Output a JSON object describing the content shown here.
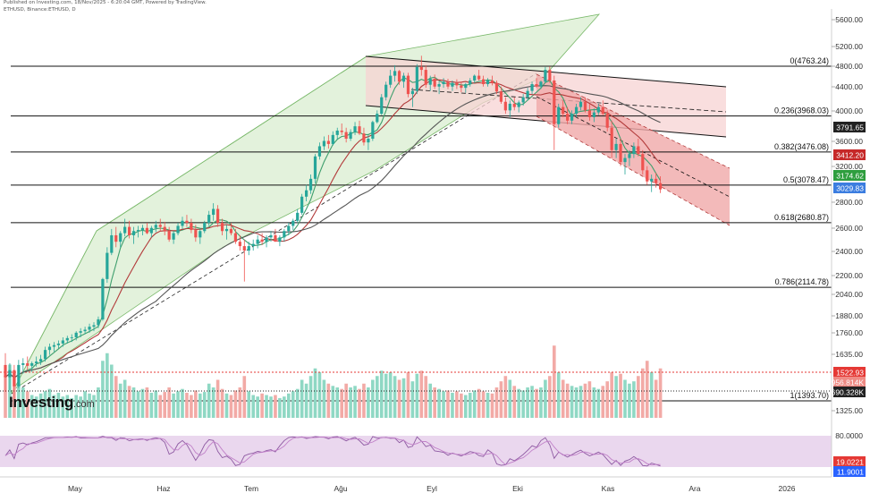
{
  "header": {
    "published": "Published on Investing.com, 18/Nov/2025 - 6:20:04 GMT, Powered by TradingView.",
    "symbol": "ETHUSD, Binance:ETHUSD, D"
  },
  "branding": {
    "name": "Investing",
    "suffix": ".com"
  },
  "colors": {
    "up": "#26a69a",
    "down": "#ef5350",
    "vol_up": "#8fd8c4",
    "vol_down": "#f2aaa6",
    "up_channel": "#e3f2dc",
    "down_channel": "#f7d3d3",
    "ma_fast": "#3f9f6d",
    "ma_mid": "#b23a3a",
    "ma_slow": "#555555",
    "stoch_bg": "#ead7ee",
    "stoch_line": "#8e5aa2"
  },
  "chart_data": {
    "type": "candlestick",
    "symbol": "ETHUSD",
    "exchange": "Binance",
    "interval": "D",
    "x_ticks": [
      "May",
      "Haz",
      "Tem",
      "Ağu",
      "Eyl",
      "Eki",
      "Kas",
      "Ara",
      "2026"
    ],
    "y_ticks": [
      "5600.00",
      "5200.00",
      "4800.00",
      "4400.00",
      "4000.00",
      "3600.00",
      "3200.00",
      "2800.00",
      "2600.00",
      "2400.00",
      "2200.00",
      "2040.00",
      "1880.00",
      "1760.00",
      "1635.00",
      "1325.00"
    ],
    "y_scale": "log",
    "fibonacci_levels": [
      {
        "label": "0(4763.24)",
        "level": 0,
        "price": 4763.24
      },
      {
        "label": "0.236(3968.03)",
        "level": 0.236,
        "price": 3968.03
      },
      {
        "label": "0.382(3476.08)",
        "level": 0.382,
        "price": 3476.08
      },
      {
        "label": "0.5(3078.47)",
        "level": 0.5,
        "price": 3078.47
      },
      {
        "label": "0.618(2680.87)",
        "level": 0.618,
        "price": 2680.87
      },
      {
        "label": "0.786(2114.78)",
        "level": 0.786,
        "price": 2114.78
      },
      {
        "label": "1(1393.70)",
        "level": 1,
        "price": 1393.7
      }
    ],
    "price_tags": [
      {
        "value": "3791.65",
        "color": "#222222"
      },
      {
        "value": "3412.20",
        "color": "#c62828"
      },
      {
        "value": "3174.62",
        "color": "#2e9e3e"
      },
      {
        "value": "3029.83",
        "color": "#3b7de0"
      }
    ],
    "volume_tags": [
      {
        "value": "1522.93",
        "color": "#e53935"
      },
      {
        "value": "956.814K",
        "color": "#ef8a84"
      },
      {
        "value": "690.328K",
        "color": "#222222"
      }
    ],
    "stochastic": {
      "y_ticks": [
        "80.0000",
        "20.0000"
      ],
      "tags": [
        {
          "value": "19.0221",
          "color": "#e53935"
        },
        {
          "value": "11.9001",
          "color": "#2962ff"
        }
      ]
    },
    "candles": [
      [
        1590,
        1660,
        1440,
        1520
      ],
      [
        1520,
        1600,
        1450,
        1560
      ],
      [
        1560,
        1590,
        1400,
        1470
      ],
      [
        1470,
        1620,
        1460,
        1590
      ],
      [
        1590,
        1630,
        1540,
        1600
      ],
      [
        1600,
        1640,
        1560,
        1585
      ],
      [
        1585,
        1610,
        1550,
        1600
      ],
      [
        1600,
        1640,
        1580,
        1610
      ],
      [
        1610,
        1650,
        1590,
        1625
      ],
      [
        1625,
        1700,
        1610,
        1680
      ],
      [
        1680,
        1720,
        1650,
        1700
      ],
      [
        1700,
        1730,
        1670,
        1710
      ],
      [
        1710,
        1740,
        1690,
        1720
      ],
      [
        1720,
        1760,
        1700,
        1740
      ],
      [
        1740,
        1770,
        1720,
        1755
      ],
      [
        1755,
        1780,
        1730,
        1760
      ],
      [
        1760,
        1800,
        1740,
        1790
      ],
      [
        1790,
        1820,
        1760,
        1800
      ],
      [
        1800,
        1830,
        1780,
        1810
      ],
      [
        1810,
        1850,
        1790,
        1830
      ],
      [
        1830,
        1860,
        1800,
        1840
      ],
      [
        1840,
        1900,
        1820,
        1880
      ],
      [
        1880,
        2190,
        1870,
        2180
      ],
      [
        2180,
        2450,
        2150,
        2400
      ],
      [
        2400,
        2620,
        2380,
        2560
      ],
      [
        2560,
        2640,
        2450,
        2500
      ],
      [
        2500,
        2600,
        2450,
        2580
      ],
      [
        2580,
        2720,
        2550,
        2640
      ],
      [
        2640,
        2700,
        2530,
        2560
      ],
      [
        2560,
        2640,
        2480,
        2600
      ],
      [
        2600,
        2650,
        2540,
        2610
      ],
      [
        2610,
        2660,
        2560,
        2630
      ],
      [
        2630,
        2680,
        2570,
        2580
      ],
      [
        2580,
        2650,
        2540,
        2630
      ],
      [
        2630,
        2700,
        2590,
        2660
      ],
      [
        2660,
        2720,
        2600,
        2640
      ],
      [
        2640,
        2690,
        2560,
        2600
      ],
      [
        2600,
        2640,
        2500,
        2520
      ],
      [
        2520,
        2600,
        2480,
        2580
      ],
      [
        2580,
        2680,
        2560,
        2650
      ],
      [
        2650,
        2740,
        2620,
        2700
      ],
      [
        2700,
        2760,
        2640,
        2680
      ],
      [
        2680,
        2720,
        2580,
        2610
      ],
      [
        2610,
        2660,
        2500,
        2540
      ],
      [
        2540,
        2620,
        2480,
        2600
      ],
      [
        2600,
        2700,
        2580,
        2680
      ],
      [
        2680,
        2800,
        2650,
        2760
      ],
      [
        2760,
        2880,
        2700,
        2820
      ],
      [
        2820,
        2860,
        2640,
        2680
      ],
      [
        2680,
        2720,
        2560,
        2600
      ],
      [
        2600,
        2660,
        2520,
        2620
      ],
      [
        2620,
        2680,
        2560,
        2580
      ],
      [
        2580,
        2620,
        2480,
        2500
      ],
      [
        2500,
        2560,
        2420,
        2460
      ],
      [
        2460,
        2520,
        2160,
        2420
      ],
      [
        2420,
        2500,
        2380,
        2460
      ],
      [
        2460,
        2520,
        2420,
        2480
      ],
      [
        2480,
        2560,
        2440,
        2520
      ],
      [
        2520,
        2580,
        2470,
        2500
      ],
      [
        2500,
        2560,
        2450,
        2540
      ],
      [
        2540,
        2600,
        2500,
        2560
      ],
      [
        2560,
        2620,
        2520,
        2500
      ],
      [
        2500,
        2560,
        2460,
        2540
      ],
      [
        2540,
        2620,
        2500,
        2600
      ],
      [
        2600,
        2680,
        2560,
        2650
      ],
      [
        2650,
        2720,
        2610,
        2700
      ],
      [
        2700,
        2820,
        2680,
        2780
      ],
      [
        2780,
        2980,
        2760,
        2950
      ],
      [
        2950,
        3080,
        2900,
        3020
      ],
      [
        3020,
        3200,
        2980,
        3150
      ],
      [
        3150,
        3450,
        3100,
        3420
      ],
      [
        3420,
        3600,
        3380,
        3550
      ],
      [
        3550,
        3680,
        3500,
        3620
      ],
      [
        3620,
        3700,
        3520,
        3580
      ],
      [
        3580,
        3750,
        3560,
        3700
      ],
      [
        3700,
        3800,
        3640,
        3760
      ],
      [
        3760,
        3860,
        3700,
        3740
      ],
      [
        3740,
        3800,
        3600,
        3650
      ],
      [
        3650,
        3780,
        3620,
        3740
      ],
      [
        3740,
        3880,
        3700,
        3820
      ],
      [
        3820,
        3900,
        3700,
        3720
      ],
      [
        3720,
        3800,
        3560,
        3600
      ],
      [
        3600,
        3700,
        3500,
        3650
      ],
      [
        3650,
        3900,
        3620,
        3880
      ],
      [
        3880,
        4050,
        3860,
        4000
      ],
      [
        4000,
        4300,
        3980,
        4250
      ],
      [
        4250,
        4500,
        4200,
        4450
      ],
      [
        4450,
        4700,
        4400,
        4600
      ],
      [
        4600,
        4780,
        4500,
        4680
      ],
      [
        4680,
        4700,
        4450,
        4500
      ],
      [
        4500,
        4650,
        4400,
        4600
      ],
      [
        4600,
        4650,
        4250,
        4300
      ],
      [
        4300,
        4400,
        4100,
        4350
      ],
      [
        4350,
        4800,
        4300,
        4750
      ],
      [
        4750,
        4950,
        4600,
        4700
      ],
      [
        4700,
        4780,
        4400,
        4450
      ],
      [
        4450,
        4600,
        4350,
        4550
      ],
      [
        4550,
        4620,
        4380,
        4420
      ],
      [
        4420,
        4500,
        4300,
        4460
      ],
      [
        4460,
        4560,
        4400,
        4500
      ],
      [
        4500,
        4550,
        4380,
        4420
      ],
      [
        4420,
        4520,
        4350,
        4480
      ],
      [
        4480,
        4540,
        4380,
        4440
      ],
      [
        4440,
        4500,
        4330,
        4400
      ],
      [
        4400,
        4480,
        4320,
        4460
      ],
      [
        4460,
        4560,
        4420,
        4520
      ],
      [
        4520,
        4620,
        4480,
        4600
      ],
      [
        4600,
        4700,
        4520,
        4540
      ],
      [
        4540,
        4600,
        4420,
        4460
      ],
      [
        4460,
        4560,
        4420,
        4520
      ],
      [
        4520,
        4600,
        4440,
        4480
      ],
      [
        4480,
        4520,
        4300,
        4340
      ],
      [
        4340,
        4420,
        4150,
        4180
      ],
      [
        4180,
        4250,
        4000,
        4050
      ],
      [
        4050,
        4200,
        3950,
        4150
      ],
      [
        4150,
        4250,
        4050,
        4100
      ],
      [
        4100,
        4200,
        4020,
        4170
      ],
      [
        4170,
        4300,
        4120,
        4250
      ],
      [
        4250,
        4400,
        4200,
        4350
      ],
      [
        4350,
        4500,
        4300,
        4460
      ],
      [
        4460,
        4560,
        4400,
        4420
      ],
      [
        4420,
        4520,
        4380,
        4500
      ],
      [
        4500,
        4750,
        4480,
        4700
      ],
      [
        4700,
        4760,
        4480,
        4520
      ],
      [
        4520,
        4600,
        3500,
        3850
      ],
      [
        3850,
        4150,
        3800,
        4100
      ],
      [
        4100,
        4200,
        3950,
        4000
      ],
      [
        4000,
        4100,
        3850,
        3900
      ],
      [
        3900,
        4050,
        3850,
        4000
      ],
      [
        4000,
        4150,
        3950,
        4100
      ],
      [
        4100,
        4250,
        4050,
        4180
      ],
      [
        4180,
        4250,
        4020,
        4050
      ],
      [
        4050,
        4150,
        3900,
        3950
      ],
      [
        3950,
        4080,
        3880,
        4020
      ],
      [
        4020,
        4150,
        3980,
        4100
      ],
      [
        4100,
        4200,
        3980,
        4000
      ],
      [
        4000,
        4050,
        3750,
        3800
      ],
      [
        3800,
        3900,
        3400,
        3500
      ],
      [
        3500,
        3650,
        3400,
        3580
      ],
      [
        3580,
        3650,
        3300,
        3350
      ],
      [
        3350,
        3450,
        3200,
        3400
      ],
      [
        3400,
        3500,
        3300,
        3450
      ],
      [
        3450,
        3600,
        3400,
        3550
      ],
      [
        3550,
        3650,
        3420,
        3450
      ],
      [
        3450,
        3500,
        3200,
        3250
      ],
      [
        3250,
        3300,
        3080,
        3120
      ],
      [
        3120,
        3200,
        3000,
        3150
      ],
      [
        3150,
        3220,
        3050,
        3100
      ],
      [
        3100,
        3180,
        2990,
        3030
      ]
    ],
    "volume_heights": [
      0.55,
      0.7,
      0.6,
      0.45,
      0.4,
      0.35,
      0.3,
      0.28,
      0.32,
      0.35,
      0.38,
      0.3,
      0.33,
      0.28,
      0.3,
      0.26,
      0.3,
      0.28,
      0.35,
      0.32,
      0.3,
      0.4,
      0.75,
      0.85,
      0.7,
      0.55,
      0.45,
      0.5,
      0.42,
      0.4,
      0.35,
      0.38,
      0.4,
      0.33,
      0.36,
      0.3,
      0.34,
      0.4,
      0.32,
      0.35,
      0.38,
      0.33,
      0.3,
      0.36,
      0.32,
      0.34,
      0.45,
      0.4,
      0.5,
      0.38,
      0.32,
      0.3,
      0.36,
      0.4,
      0.55,
      0.35,
      0.3,
      0.28,
      0.32,
      0.3,
      0.28,
      0.3,
      0.26,
      0.28,
      0.32,
      0.35,
      0.38,
      0.5,
      0.45,
      0.55,
      0.65,
      0.6,
      0.5,
      0.45,
      0.42,
      0.4,
      0.38,
      0.45,
      0.4,
      0.42,
      0.38,
      0.45,
      0.4,
      0.5,
      0.55,
      0.62,
      0.58,
      0.6,
      0.55,
      0.5,
      0.52,
      0.6,
      0.48,
      0.58,
      0.62,
      0.55,
      0.45,
      0.4,
      0.38,
      0.35,
      0.36,
      0.33,
      0.35,
      0.32,
      0.3,
      0.33,
      0.36,
      0.38,
      0.35,
      0.33,
      0.32,
      0.4,
      0.48,
      0.55,
      0.5,
      0.42,
      0.38,
      0.36,
      0.4,
      0.42,
      0.38,
      0.4,
      0.5,
      0.55,
      0.95,
      0.6,
      0.5,
      0.45,
      0.42,
      0.4,
      0.42,
      0.45,
      0.48,
      0.4,
      0.38,
      0.42,
      0.48,
      0.6,
      0.55,
      0.58,
      0.5,
      0.45,
      0.48,
      0.55,
      0.65,
      0.75,
      0.6,
      0.5,
      0.65
    ]
  }
}
